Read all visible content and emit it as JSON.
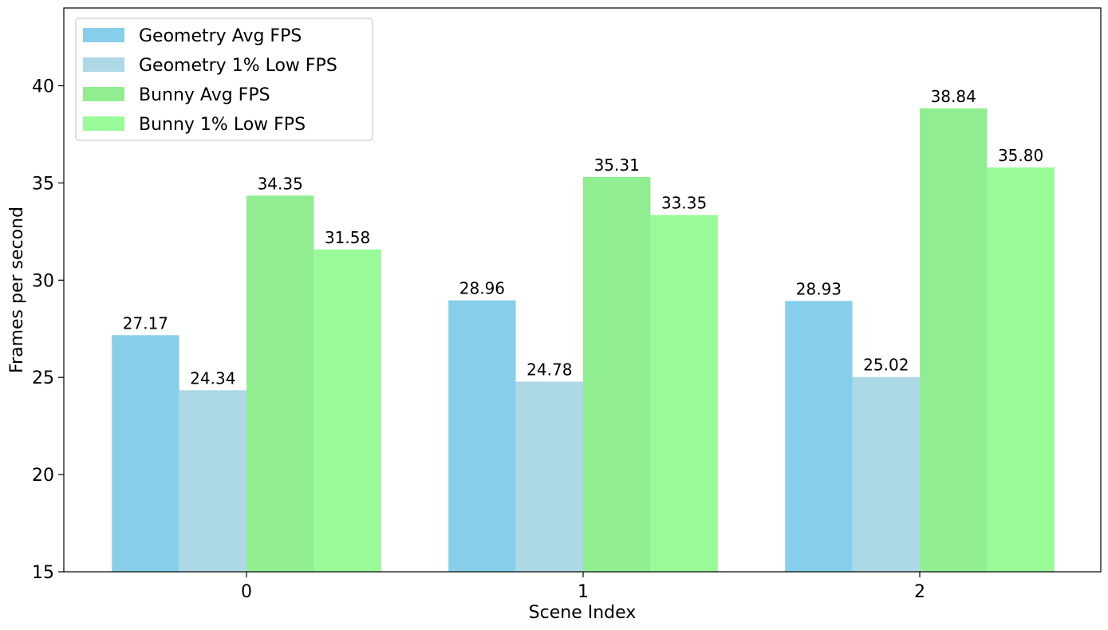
{
  "chart_data": {
    "type": "bar",
    "title": "",
    "xlabel": "Scene Index",
    "ylabel": "Frames per second",
    "categories": [
      "0",
      "1",
      "2"
    ],
    "ylim": [
      15,
      44
    ],
    "yticks": [
      15,
      20,
      25,
      30,
      35,
      40
    ],
    "grid": false,
    "legend_position": "top-left",
    "series": [
      {
        "name": "Geometry Avg FPS",
        "color": "#87CEEB",
        "values": [
          27.17,
          28.96,
          28.93
        ],
        "labels": [
          "27.17",
          "28.96",
          "28.93"
        ]
      },
      {
        "name": "Geometry 1% Low FPS",
        "color": "#ADD8E6",
        "values": [
          24.34,
          24.78,
          25.02
        ],
        "labels": [
          "24.34",
          "24.78",
          "25.02"
        ]
      },
      {
        "name": "Bunny Avg FPS",
        "color": "#90EE90",
        "values": [
          34.35,
          35.31,
          38.84
        ],
        "labels": [
          "34.35",
          "35.31",
          "38.84"
        ]
      },
      {
        "name": "Bunny 1% Low FPS",
        "color": "#98FB98",
        "values": [
          31.58,
          33.35,
          35.8
        ],
        "labels": [
          "31.58",
          "33.35",
          "35.80"
        ]
      }
    ]
  }
}
